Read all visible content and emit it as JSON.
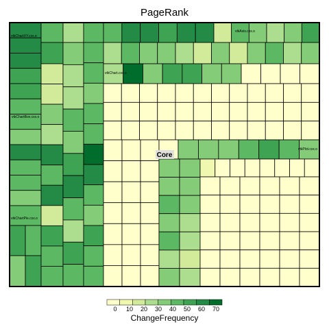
{
  "chart_data": {
    "type": "treemap",
    "title": "PageRank",
    "legend": {
      "title": "ChangeFrequency",
      "ticks": [
        0,
        10,
        20,
        30,
        40,
        50,
        60,
        70
      ],
      "colors": [
        "#ffffcc",
        "#f0f8b0",
        "#d2eb9a",
        "#addd8e",
        "#84cc78",
        "#5cb863",
        "#3ea352",
        "#238b45",
        "#006d2c"
      ],
      "placement": "bottom"
    },
    "groups": [
      {
        "label": "vtkChartXY.cxx.o"
      },
      {
        "label": "vtkAxis.cxx.o"
      },
      {
        "label": "vtkChart.cxx.o"
      },
      {
        "label": "vtkChartBox.cxx.o"
      },
      {
        "label": "Core"
      },
      {
        "label": "vtkPlot.cxx.o"
      },
      {
        "label": "vtkChartPie.cxx.o"
      }
    ]
  }
}
